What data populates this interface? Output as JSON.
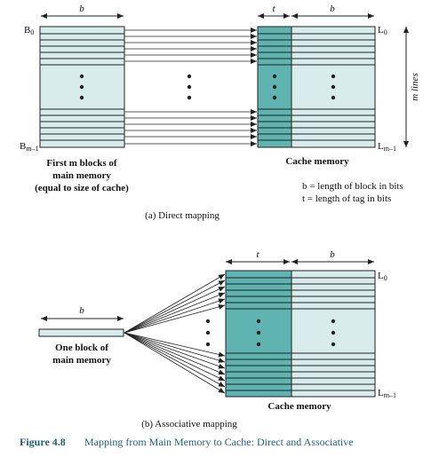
{
  "colors": {
    "light_block": "#d9ecec",
    "tag_dark": "#5fb3b1",
    "line": "#222222",
    "caption": "#1f5f7a"
  },
  "direct": {
    "b_label_left": "b",
    "t_label": "t",
    "b_label_right": "b",
    "B0": "B",
    "B0_sub": "0",
    "Bm1": "B",
    "Bm1_sub": "m–1",
    "L0": "L",
    "L0_sub": "0",
    "Lm1": "L",
    "Lm1_sub": "m–1",
    "m_lines": "m lines",
    "first_blocks_1": "First m blocks of",
    "first_blocks_2": "main memory",
    "first_blocks_3": "(equal to size of cache)",
    "cache_memory": "Cache memory",
    "legend_b": "b = length of block in bits",
    "legend_t": "t = length of tag in bits",
    "subcaption": "(a) Direct mapping"
  },
  "assoc": {
    "t_label": "t",
    "b_label": "b",
    "b_label_left": "b",
    "L0": "L",
    "L0_sub": "0",
    "Lm1": "L",
    "Lm1_sub": "m–1",
    "one_block_1": "One block of",
    "one_block_2": "main memory",
    "cache_memory": "Cache memory",
    "subcaption": "(b) Associative mapping"
  },
  "figure": {
    "number": "Figure 4.8",
    "title": "Mapping from Main Memory to Cache: Direct and Associative"
  }
}
